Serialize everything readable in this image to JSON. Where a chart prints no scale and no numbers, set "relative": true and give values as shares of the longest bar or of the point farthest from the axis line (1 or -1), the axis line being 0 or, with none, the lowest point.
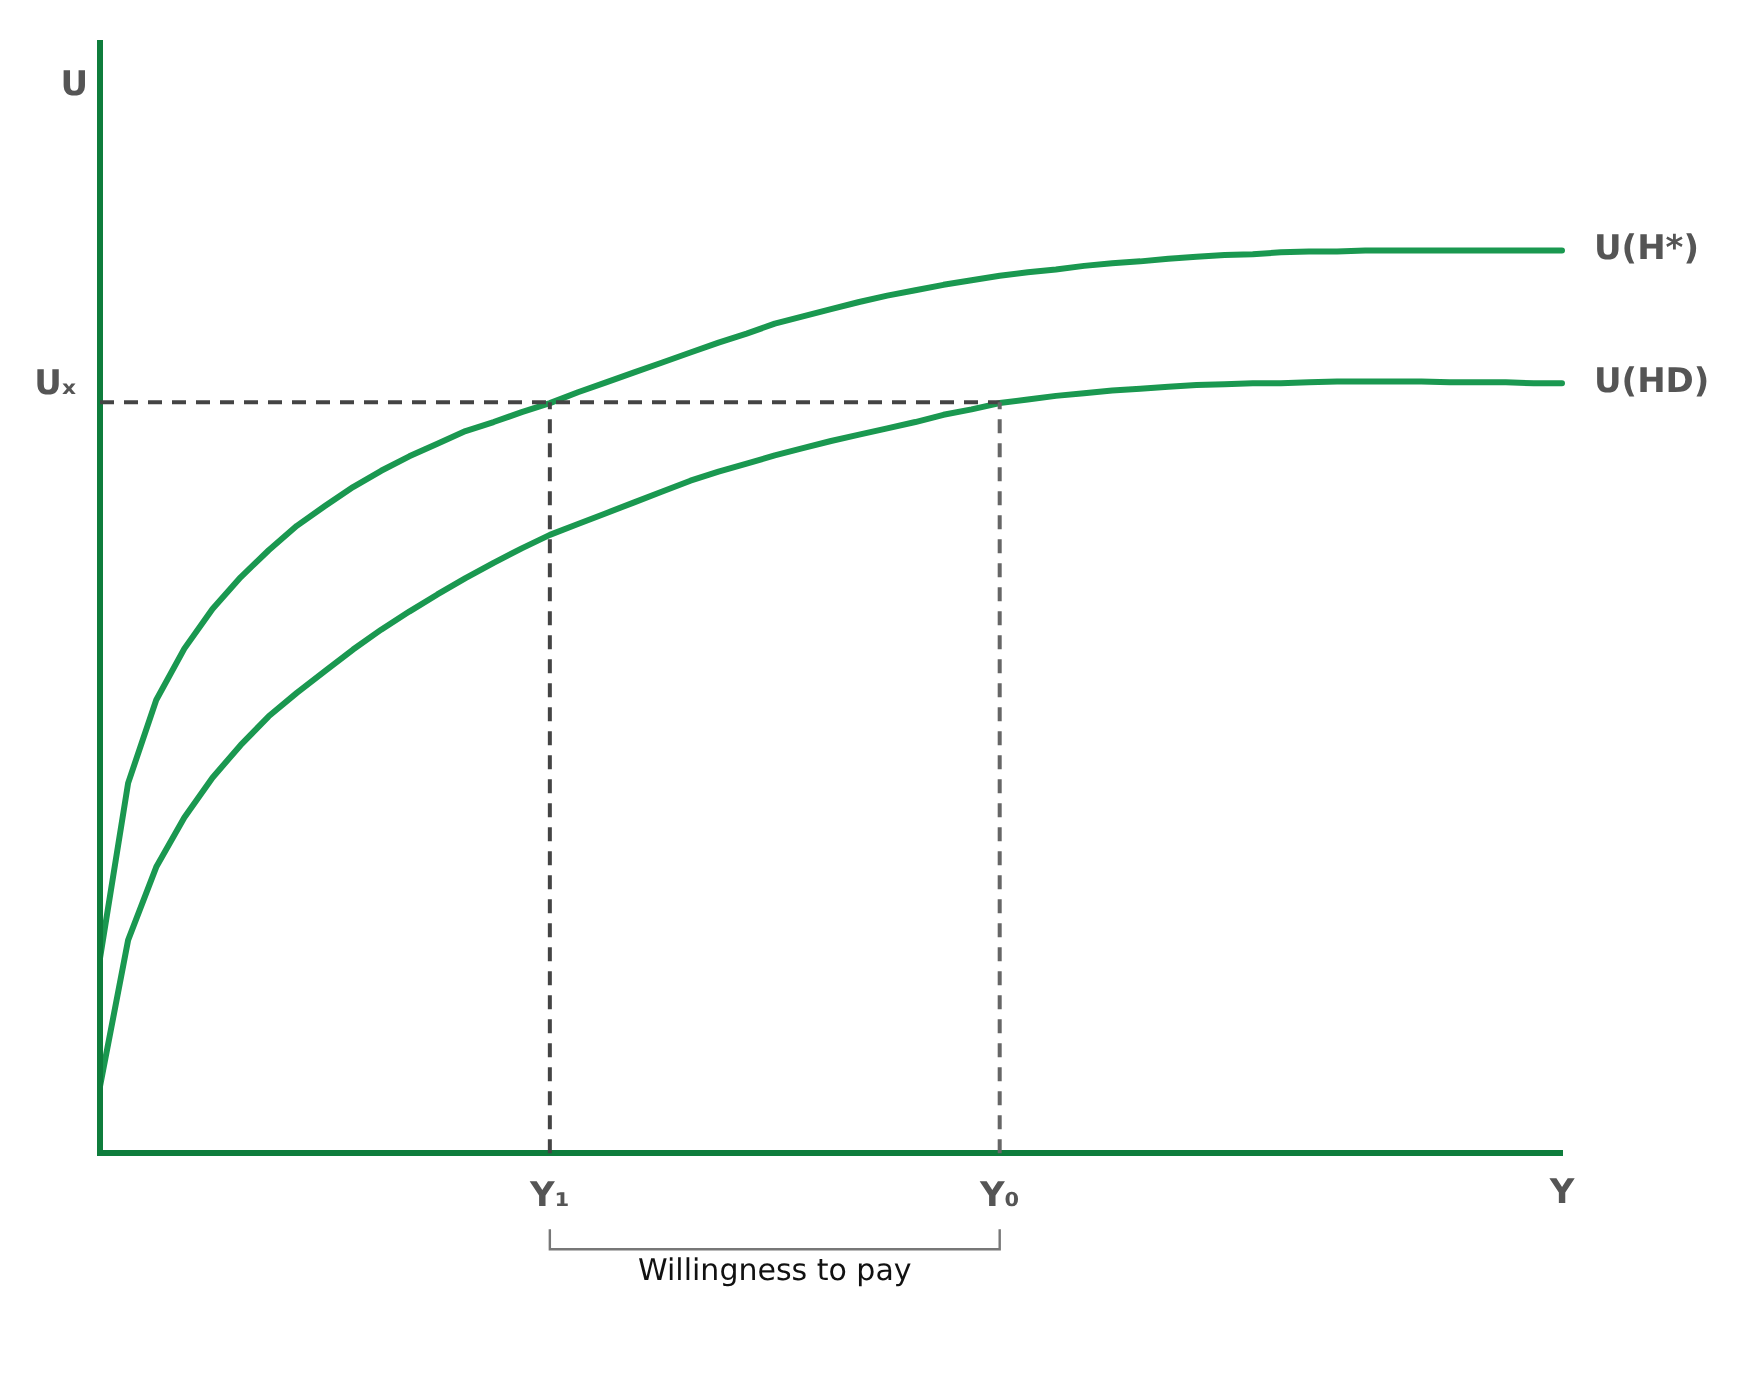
{
  "chart_data": {
    "type": "line",
    "relative": true,
    "xlabel": "Y",
    "ylabel": "U",
    "legend": false,
    "grid": false,
    "marker": "none",
    "line_style": "solid",
    "categories": [
      null,
      null,
      null,
      null,
      null,
      null,
      null,
      null,
      null,
      null,
      null,
      null,
      null,
      null,
      null,
      null,
      "Y₁",
      null,
      null,
      null,
      null,
      null,
      null,
      null,
      null,
      null,
      null,
      null,
      null,
      null,
      null,
      null,
      "Y₀",
      null,
      null,
      null,
      null,
      null,
      null,
      null,
      null,
      null,
      null,
      null,
      null,
      null,
      null,
      null,
      null,
      null,
      null,
      null,
      null
    ],
    "series": [
      {
        "name": "U(H*)",
        "color": "#1a9850",
        "values": [
          0.216,
          0.41,
          0.502,
          0.559,
          0.603,
          0.638,
          0.668,
          0.695,
          0.717,
          0.738,
          0.756,
          0.772,
          0.786,
          0.8,
          0.81,
          0.821,
          0.831,
          0.843,
          0.854,
          0.865,
          0.876,
          0.887,
          0.898,
          0.908,
          0.919,
          0.927,
          0.935,
          0.943,
          0.95,
          0.956,
          0.962,
          0.967,
          0.972,
          0.976,
          0.979,
          0.983,
          0.986,
          0.988,
          0.991,
          0.993,
          0.995,
          0.996,
          0.998,
          0.999,
          0.999,
          1.0,
          1.0,
          1.0,
          1.0,
          1.0,
          1.0,
          1.0,
          1.0
        ]
      },
      {
        "name": "U(HD)",
        "color": "#1a9850",
        "values": [
          0.074,
          0.236,
          0.317,
          0.372,
          0.416,
          0.452,
          0.484,
          0.51,
          0.534,
          0.558,
          0.58,
          0.6,
          0.619,
          0.637,
          0.654,
          0.67,
          0.685,
          0.697,
          0.709,
          0.721,
          0.733,
          0.745,
          0.755,
          0.764,
          0.773,
          0.781,
          0.789,
          0.796,
          0.803,
          0.81,
          0.818,
          0.824,
          0.831,
          0.835,
          0.839,
          0.842,
          0.845,
          0.847,
          0.849,
          0.851,
          0.852,
          0.853,
          0.853,
          0.854,
          0.855,
          0.855,
          0.855,
          0.855,
          0.854,
          0.854,
          0.854,
          0.853,
          0.853
        ]
      }
    ],
    "ref_lines": [
      {
        "axis": "y",
        "value": 0.832,
        "label": "Uₓ",
        "color": "#444444",
        "line_style": "dashed"
      },
      {
        "axis": "x",
        "value": "Y₁",
        "color": "#444444",
        "line_style": "dashed"
      },
      {
        "axis": "x",
        "value": "Y₀",
        "color": "#666666",
        "line_style": "dashed"
      }
    ],
    "annotations": [
      "Willingness to pay"
    ]
  }
}
